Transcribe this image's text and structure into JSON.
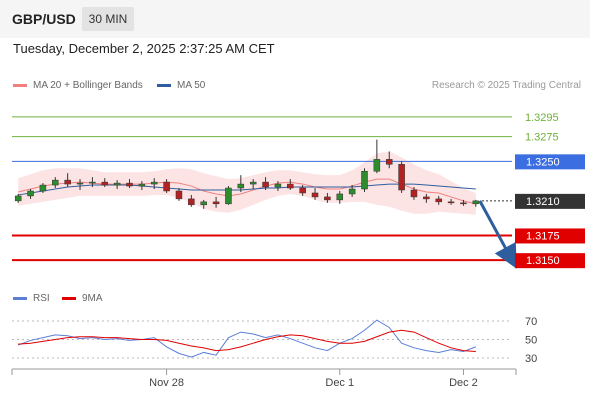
{
  "header": {
    "pair": "GBP/USD",
    "timeframe": "30 MIN",
    "datetime": "Tuesday, December 2, 2025 2:37:25 AM CET"
  },
  "legend": {
    "ma20_label": "MA 20 + Bollinger Bands",
    "ma50_label": "MA 50",
    "research": "Research © 2025 Trading Central"
  },
  "rsi_legend": {
    "rsi_label": "RSI",
    "ma9_label": "9MA"
  },
  "colors": {
    "ma20": "#f08080",
    "ma50": "#2e5e9e",
    "resistance": "#6fb23a",
    "pivot": "#3b6ee0",
    "support": "#e00000",
    "current": "#333333",
    "arrow": "#2e5e9e",
    "rsi": "#5b7fd6",
    "rsi_ma9": "#e00000"
  },
  "chart_data": [
    {
      "type": "candlestick",
      "title": "GBP/USD",
      "x_tick_labels": [
        "Nov 28",
        "Dec 1",
        "Dec 2"
      ],
      "ylim": [
        1.3137,
        1.3305
      ],
      "series": [
        {
          "name": "MA 20 + Bollinger Bands",
          "values": [
            1.3219,
            1.3222,
            1.3225,
            1.3227,
            1.3228,
            1.3229,
            1.3228,
            1.3227,
            1.3227,
            1.3227,
            1.3227,
            1.3228,
            1.3229,
            1.3228,
            1.3225,
            1.322,
            1.3217,
            1.3215,
            1.3217,
            1.3221,
            1.3225,
            1.3228,
            1.3229,
            1.3227,
            1.3224,
            1.3222,
            1.3222,
            1.3225,
            1.3229,
            1.3232,
            1.3232,
            1.3227,
            1.3222,
            1.3219,
            1.3218,
            1.3214,
            1.321,
            1.3207
          ]
        },
        {
          "name": "MA 50",
          "values": [
            1.3216,
            1.3218,
            1.322,
            1.3222,
            1.3224,
            1.3225,
            1.3226,
            1.3226,
            1.3226,
            1.3226,
            1.3225,
            1.3224,
            1.3223,
            1.3222,
            1.3221,
            1.3221,
            1.3221,
            1.3221,
            1.3221,
            1.3222,
            1.3223,
            1.3223,
            1.3224,
            1.3224,
            1.3224,
            1.3224,
            1.3224,
            1.3224,
            1.3225,
            1.3226,
            1.3227,
            1.3227,
            1.3227,
            1.3226,
            1.3225,
            1.3224,
            1.3223,
            1.3222
          ]
        }
      ],
      "candles": [
        [
          1.321,
          1.3217,
          1.3208,
          1.3215
        ],
        [
          1.3215,
          1.3222,
          1.3212,
          1.322
        ],
        [
          1.322,
          1.3228,
          1.3218,
          1.3226
        ],
        [
          1.3226,
          1.3234,
          1.3223,
          1.3231
        ],
        [
          1.3231,
          1.3238,
          1.3224,
          1.3227
        ],
        [
          1.3227,
          1.3232,
          1.3221,
          1.3228
        ],
        [
          1.3228,
          1.3234,
          1.3224,
          1.3229
        ],
        [
          1.3229,
          1.3233,
          1.3224,
          1.3226
        ],
        [
          1.3226,
          1.3231,
          1.3222,
          1.3228
        ],
        [
          1.3228,
          1.3232,
          1.3223,
          1.3225
        ],
        [
          1.3225,
          1.323,
          1.3221,
          1.3227
        ],
        [
          1.3227,
          1.3233,
          1.3222,
          1.3229
        ],
        [
          1.3229,
          1.3232,
          1.3218,
          1.322
        ],
        [
          1.322,
          1.3223,
          1.321,
          1.3212
        ],
        [
          1.3212,
          1.3216,
          1.3204,
          1.3206
        ],
        [
          1.3206,
          1.3211,
          1.3202,
          1.3209
        ],
        [
          1.3209,
          1.3214,
          1.3203,
          1.3207
        ],
        [
          1.3207,
          1.3225,
          1.3206,
          1.3223
        ],
        [
          1.3223,
          1.3236,
          1.3219,
          1.3227
        ],
        [
          1.3227,
          1.3232,
          1.3222,
          1.3229
        ],
        [
          1.3229,
          1.3234,
          1.3221,
          1.3224
        ],
        [
          1.3224,
          1.323,
          1.322,
          1.3227
        ],
        [
          1.3227,
          1.3232,
          1.3221,
          1.3223
        ],
        [
          1.3223,
          1.3226,
          1.3215,
          1.3218
        ],
        [
          1.3218,
          1.3223,
          1.3211,
          1.3214
        ],
        [
          1.3214,
          1.3218,
          1.3208,
          1.3211
        ],
        [
          1.3211,
          1.322,
          1.3207,
          1.3217
        ],
        [
          1.3217,
          1.3226,
          1.3214,
          1.3222
        ],
        [
          1.3222,
          1.3243,
          1.3219,
          1.324
        ],
        [
          1.324,
          1.3272,
          1.3238,
          1.3252
        ],
        [
          1.3252,
          1.326,
          1.3243,
          1.3247
        ],
        [
          1.3247,
          1.325,
          1.3218,
          1.3221
        ],
        [
          1.3221,
          1.3224,
          1.3211,
          1.3214
        ],
        [
          1.3214,
          1.3217,
          1.3208,
          1.3212
        ],
        [
          1.3212,
          1.3215,
          1.3206,
          1.3209
        ],
        [
          1.3209,
          1.3212,
          1.3206,
          1.3208
        ],
        [
          1.3208,
          1.3211,
          1.3205,
          1.3207
        ],
        [
          1.3207,
          1.3211,
          1.3204,
          1.321
        ]
      ],
      "levels": [
        {
          "label": "1.3295",
          "value": 1.3295,
          "kind": "resistance"
        },
        {
          "label": "1.3275",
          "value": 1.3275,
          "kind": "resistance"
        },
        {
          "label": "1.3250",
          "value": 1.325,
          "kind": "pivot"
        },
        {
          "label": "1.3210",
          "value": 1.321,
          "kind": "current"
        },
        {
          "label": "1.3175",
          "value": 1.3175,
          "kind": "support"
        },
        {
          "label": "1.3150",
          "value": 1.315,
          "kind": "support"
        }
      ],
      "projection": {
        "from": 1.321,
        "to": 1.315
      }
    },
    {
      "type": "line",
      "title": "RSI",
      "y_tick_labels": [
        "70",
        "50",
        "30"
      ],
      "ylim": [
        20,
        80
      ],
      "series": [
        {
          "name": "RSI",
          "values": [
            44,
            49,
            52,
            55,
            54,
            51,
            52,
            50,
            51,
            49,
            50,
            52,
            42,
            35,
            31,
            36,
            33,
            52,
            58,
            56,
            52,
            55,
            51,
            46,
            41,
            38,
            46,
            51,
            60,
            71,
            63,
            46,
            41,
            38,
            36,
            39,
            37,
            42
          ]
        },
        {
          "name": "9MA",
          "values": [
            45,
            46,
            48,
            50,
            52,
            53,
            53,
            52,
            52,
            51,
            50,
            50,
            49,
            46,
            43,
            41,
            38,
            39,
            42,
            46,
            50,
            53,
            55,
            54,
            51,
            48,
            46,
            46,
            48,
            53,
            58,
            60,
            58,
            52,
            46,
            41,
            38,
            37
          ]
        }
      ]
    }
  ]
}
